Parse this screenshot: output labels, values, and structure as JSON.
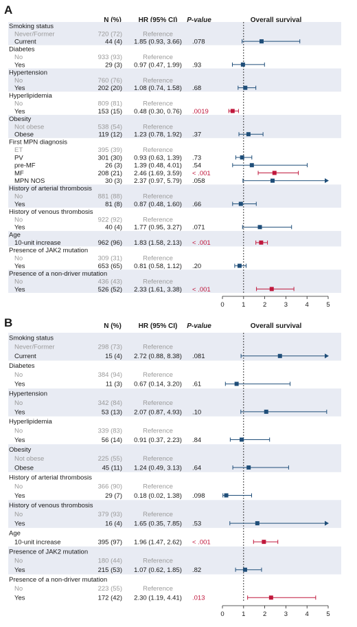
{
  "colors": {
    "band": "#e8ebf3",
    "sig": "#c0183c",
    "nonsig": "#1f4e79",
    "ref_text": "#9a9a9a",
    "text": "#1a1a1a"
  },
  "chart_data": [
    {
      "type": "forest",
      "panel_label": "A",
      "title": "Overall survival",
      "columns": {
        "n": "N (%)",
        "hr": "HR (95% CI)",
        "p": "P-value"
      },
      "xlim": [
        0,
        5
      ],
      "xticks": [
        "0",
        "1",
        "2",
        "3",
        "4",
        "5"
      ],
      "reference_line": 1,
      "groups": [
        {
          "title": "Smoking status",
          "rows": [
            {
              "label": "Never/Former",
              "n": "720 (72)",
              "hr_text": "Reference",
              "ref": true
            },
            {
              "label": "Current",
              "n": "44 (4)",
              "hr_text": "1.85 (0.93, 3.66)",
              "p": ".078",
              "hr": 1.85,
              "lo": 0.93,
              "hi": 3.66,
              "sig": false
            }
          ]
        },
        {
          "title": "Diabetes",
          "rows": [
            {
              "label": "No",
              "n": "933 (93)",
              "hr_text": "Reference",
              "ref": true
            },
            {
              "label": "Yes",
              "n": "29 (3)",
              "hr_text": "0.97 (0.47, 1.99)",
              "p": ".93",
              "hr": 0.97,
              "lo": 0.47,
              "hi": 1.99,
              "sig": false
            }
          ]
        },
        {
          "title": "Hypertension",
          "rows": [
            {
              "label": "No",
              "n": "760 (76)",
              "hr_text": "Reference",
              "ref": true
            },
            {
              "label": "Yes",
              "n": "202 (20)",
              "hr_text": "1.08 (0.74, 1.58)",
              "p": ".68",
              "hr": 1.08,
              "lo": 0.74,
              "hi": 1.58,
              "sig": false
            }
          ]
        },
        {
          "title": "Hyperlipidemia",
          "rows": [
            {
              "label": "No",
              "n": "809 (81)",
              "hr_text": "Reference",
              "ref": true
            },
            {
              "label": "Yes",
              "n": "153 (15)",
              "hr_text": "0.48 (0.30, 0.76)",
              "p": ".0019",
              "hr": 0.48,
              "lo": 0.3,
              "hi": 0.76,
              "sig": true
            }
          ]
        },
        {
          "title": "Obesity",
          "rows": [
            {
              "label": "Not obese",
              "n": "538 (54)",
              "hr_text": "Reference",
              "ref": true
            },
            {
              "label": "Obese",
              "n": "119 (12)",
              "hr_text": "1.23 (0.78, 1.92)",
              "p": ".37",
              "hr": 1.23,
              "lo": 0.78,
              "hi": 1.92,
              "sig": false
            }
          ]
        },
        {
          "title": "First MPN diagnosis",
          "rows": [
            {
              "label": "ET",
              "n": "395 (39)",
              "hr_text": "Reference",
              "ref": true
            },
            {
              "label": "PV",
              "n": "301 (30)",
              "hr_text": "0.93 (0.63, 1.39)",
              "p": ".73",
              "hr": 0.93,
              "lo": 0.63,
              "hi": 1.39,
              "sig": false
            },
            {
              "label": "pre-MF",
              "n": "26 (3)",
              "hr_text": "1.39 (0.48, 4.01)",
              "p": ".54",
              "hr": 1.39,
              "lo": 0.48,
              "hi": 4.01,
              "sig": false
            },
            {
              "label": "MF",
              "n": "208 (21)",
              "hr_text": "2.46 (1.69, 3.59)",
              "p": "< .001",
              "hr": 2.46,
              "lo": 1.69,
              "hi": 3.59,
              "sig": true
            },
            {
              "label": "MPN NOS",
              "n": "30 (3)",
              "hr_text": "2.37 (0.97, 5.79)",
              "p": ".058",
              "hr": 2.37,
              "lo": 0.97,
              "hi": 5.79,
              "sig": false
            }
          ]
        },
        {
          "title": "History of arterial thrombosis",
          "rows": [
            {
              "label": "No",
              "n": "881 (88)",
              "hr_text": "Reference",
              "ref": true
            },
            {
              "label": "Yes",
              "n": "81 (8)",
              "hr_text": "0.87 (0.48, 1.60)",
              "p": ".66",
              "hr": 0.87,
              "lo": 0.48,
              "hi": 1.6,
              "sig": false
            }
          ]
        },
        {
          "title": "History of venous thrombosis",
          "rows": [
            {
              "label": "No",
              "n": "922 (92)",
              "hr_text": "Reference",
              "ref": true
            },
            {
              "label": "Yes",
              "n": "40 (4)",
              "hr_text": "1.77 (0.95, 3.27)",
              "p": ".071",
              "hr": 1.77,
              "lo": 0.95,
              "hi": 3.27,
              "sig": false
            }
          ]
        },
        {
          "title": "Age",
          "rows": [
            {
              "label": "10-unit increase",
              "n": "962 (96)",
              "hr_text": "1.83 (1.58, 2.13)",
              "p": "< .001",
              "hr": 1.83,
              "lo": 1.58,
              "hi": 2.13,
              "sig": true
            }
          ]
        },
        {
          "title": "Presence of JAK2 mutation",
          "rows": [
            {
              "label": "No",
              "n": "309 (31)",
              "hr_text": "Reference",
              "ref": true
            },
            {
              "label": "Yes",
              "n": "653 (65)",
              "hr_text": "0.81 (0.58, 1.12)",
              "p": ".20",
              "hr": 0.81,
              "lo": 0.58,
              "hi": 1.12,
              "sig": false
            }
          ]
        },
        {
          "title": "Presence of a non-driver mutation",
          "rows": [
            {
              "label": "No",
              "n": "436 (43)",
              "hr_text": "Reference",
              "ref": true
            },
            {
              "label": "Yes",
              "n": "526 (52)",
              "hr_text": "2.33 (1.61, 3.38)",
              "p": "< .001",
              "hr": 2.33,
              "lo": 1.61,
              "hi": 3.38,
              "sig": true
            }
          ]
        }
      ]
    },
    {
      "type": "forest",
      "panel_label": "B",
      "title": "Overall survival",
      "columns": {
        "n": "N (%)",
        "hr": "HR (95% CI)",
        "p": "P-value"
      },
      "xlim": [
        0,
        5
      ],
      "xticks": [
        "0",
        "1",
        "2",
        "3",
        "4",
        "5"
      ],
      "reference_line": 1,
      "groups": [
        {
          "title": "Smoking status",
          "rows": [
            {
              "label": "Never/Former",
              "n": "298 (73)",
              "hr_text": "Reference",
              "ref": true
            },
            {
              "label": "Current",
              "n": "15 (4)",
              "hr_text": "2.72 (0.88, 8.38)",
              "p": ".081",
              "hr": 2.72,
              "lo": 0.88,
              "hi": 8.38,
              "sig": false
            }
          ]
        },
        {
          "title": "Diabetes",
          "rows": [
            {
              "label": "No",
              "n": "384 (94)",
              "hr_text": "Reference",
              "ref": true
            },
            {
              "label": "Yes",
              "n": "11 (3)",
              "hr_text": "0.67 (0.14, 3.20)",
              "p": ".61",
              "hr": 0.67,
              "lo": 0.14,
              "hi": 3.2,
              "sig": false
            }
          ]
        },
        {
          "title": "Hypertension",
          "rows": [
            {
              "label": "No",
              "n": "342 (84)",
              "hr_text": "Reference",
              "ref": true
            },
            {
              "label": "Yes",
              "n": "53 (13)",
              "hr_text": "2.07 (0.87, 4.93)",
              "p": ".10",
              "hr": 2.07,
              "lo": 0.87,
              "hi": 4.93,
              "sig": false
            }
          ]
        },
        {
          "title": "Hyperlipidemia",
          "rows": [
            {
              "label": "No",
              "n": "339 (83)",
              "hr_text": "Reference",
              "ref": true
            },
            {
              "label": "Yes",
              "n": "56 (14)",
              "hr_text": "0.91 (0.37, 2.23)",
              "p": ".84",
              "hr": 0.91,
              "lo": 0.37,
              "hi": 2.23,
              "sig": false
            }
          ]
        },
        {
          "title": "Obesity",
          "rows": [
            {
              "label": "Not obese",
              "n": "225 (55)",
              "hr_text": "Reference",
              "ref": true
            },
            {
              "label": "Obese",
              "n": "45 (11)",
              "hr_text": "1.24 (0.49, 3.13)",
              "p": ".64",
              "hr": 1.24,
              "lo": 0.49,
              "hi": 3.13,
              "sig": false
            }
          ]
        },
        {
          "title": "History of arterial thrombosis",
          "rows": [
            {
              "label": "No",
              "n": "366 (90)",
              "hr_text": "Reference",
              "ref": true
            },
            {
              "label": "Yes",
              "n": "29 (7)",
              "hr_text": "0.18 (0.02, 1.38)",
              "p": ".098",
              "hr": 0.18,
              "lo": 0.02,
              "hi": 1.38,
              "sig": false
            }
          ]
        },
        {
          "title": "History of venous thrombosis",
          "rows": [
            {
              "label": "No",
              "n": "379 (93)",
              "hr_text": "Reference",
              "ref": true
            },
            {
              "label": "Yes",
              "n": "16 (4)",
              "hr_text": "1.65 (0.35, 7.85)",
              "p": ".53",
              "hr": 1.65,
              "lo": 0.35,
              "hi": 7.85,
              "sig": false
            }
          ]
        },
        {
          "title": "Age",
          "rows": [
            {
              "label": "10-unit increase",
              "n": "395 (97)",
              "hr_text": "1.96 (1.47, 2.62)",
              "p": "< .001",
              "hr": 1.96,
              "lo": 1.47,
              "hi": 2.62,
              "sig": true
            }
          ]
        },
        {
          "title": "Presence of JAK2 mutation",
          "rows": [
            {
              "label": "No",
              "n": "180 (44)",
              "hr_text": "Reference",
              "ref": true
            },
            {
              "label": "Yes",
              "n": "215 (53)",
              "hr_text": "1.07 (0.62, 1.85)",
              "p": ".82",
              "hr": 1.07,
              "lo": 0.62,
              "hi": 1.85,
              "sig": false
            }
          ]
        },
        {
          "title": "Presence of a non-driver mutation",
          "rows": [
            {
              "label": "No",
              "n": "223 (55)",
              "hr_text": "Reference",
              "ref": true
            },
            {
              "label": "Yes",
              "n": "172 (42)",
              "hr_text": "2.30 (1.19, 4.41)",
              "p": ".013",
              "hr": 2.3,
              "lo": 1.19,
              "hi": 4.41,
              "sig": true
            }
          ]
        }
      ]
    }
  ]
}
